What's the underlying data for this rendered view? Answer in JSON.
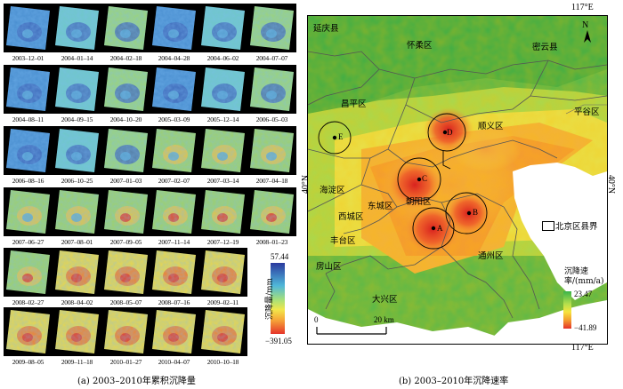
{
  "panel_a": {
    "caption": "(a) 2003–2010年累积沉降量",
    "dates": [
      "2003–12–01",
      "2004–01–14",
      "2004–02–18",
      "2004–04–28",
      "2004–06–02",
      "2004–07–07",
      "2004–08–11",
      "2004–09–15",
      "2004–10–20",
      "2005–03–09",
      "2005–12–14",
      "2006–05–03",
      "2006–08–16",
      "2006–10–25",
      "2007–01–03",
      "2007–02–07",
      "2007–03–14",
      "2007–04–18",
      "2007–06–27",
      "2007–08–01",
      "2007–09–05",
      "2007–11–14",
      "2007–12–19",
      "2008–01–23",
      "2008–02–27",
      "2008–04–02",
      "2008–05–07",
      "2008–07–16",
      "2009–02–11",
      "2009–08–05",
      "2009–11–18",
      "2010–01–27",
      "2010–04–07",
      "2010–10–18"
    ],
    "colorbar": {
      "title": "沉降量/mm",
      "max": "57.44",
      "min": "−391.05"
    }
  },
  "panel_b": {
    "caption": "(b) 2003–2010年沉降速率",
    "lon_label": "117°E",
    "lat_label": "40°N",
    "districts": {
      "yanqing": "延庆县",
      "huairou": "怀柔区",
      "miyun": "密云县",
      "changping": "昌平区",
      "shunyi": "顺义区",
      "pinggu": "平谷区",
      "haidian": "海淀区",
      "chaoyang": "朝阳区",
      "dongcheng": "东城区",
      "xicheng": "西城区",
      "fengtai": "丰台区",
      "tongzhou": "通州区",
      "fangshan": "房山区",
      "daxing": "大兴区"
    },
    "points": [
      "A",
      "B",
      "C",
      "D",
      "E"
    ],
    "north": "N",
    "legend_label": "北京区县界",
    "rate_bar": {
      "title": "沉降速率/(mm/a)",
      "max": "23.47",
      "min": "−41.89"
    },
    "scale": {
      "zero": "0",
      "dist": "20 km"
    },
    "colors": {
      "stable": "#3ab44a",
      "subsidence": "#e4312a"
    }
  }
}
